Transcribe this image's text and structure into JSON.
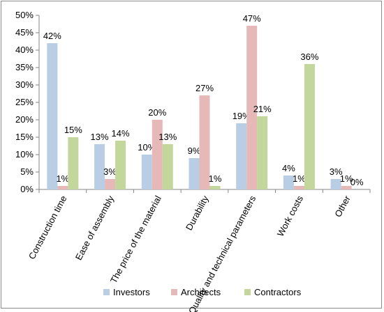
{
  "chart_data": {
    "type": "bar",
    "categories": [
      "Construction time",
      "Ease of assembly",
      "The price of the material",
      "Durability",
      "Quality and technical parameters",
      "Work costs",
      "Other"
    ],
    "series": [
      {
        "name": "Investors",
        "color": "#b9cde5",
        "values": [
          42,
          13,
          10,
          9,
          19,
          4,
          3
        ]
      },
      {
        "name": "Architects",
        "color": "#e6b9b8",
        "values": [
          1,
          3,
          20,
          27,
          47,
          1,
          1
        ]
      },
      {
        "name": "Contractors",
        "color": "#c3d69b",
        "values": [
          15,
          14,
          13,
          1,
          21,
          36,
          0
        ]
      }
    ],
    "y_ticks": [
      "0%",
      "5%",
      "10%",
      "15%",
      "20%",
      "25%",
      "30%",
      "35%",
      "40%",
      "45%",
      "50%"
    ],
    "ylim": [
      0,
      50
    ],
    "value_suffix": "%",
    "legend_position": "bottom",
    "grid": false
  }
}
